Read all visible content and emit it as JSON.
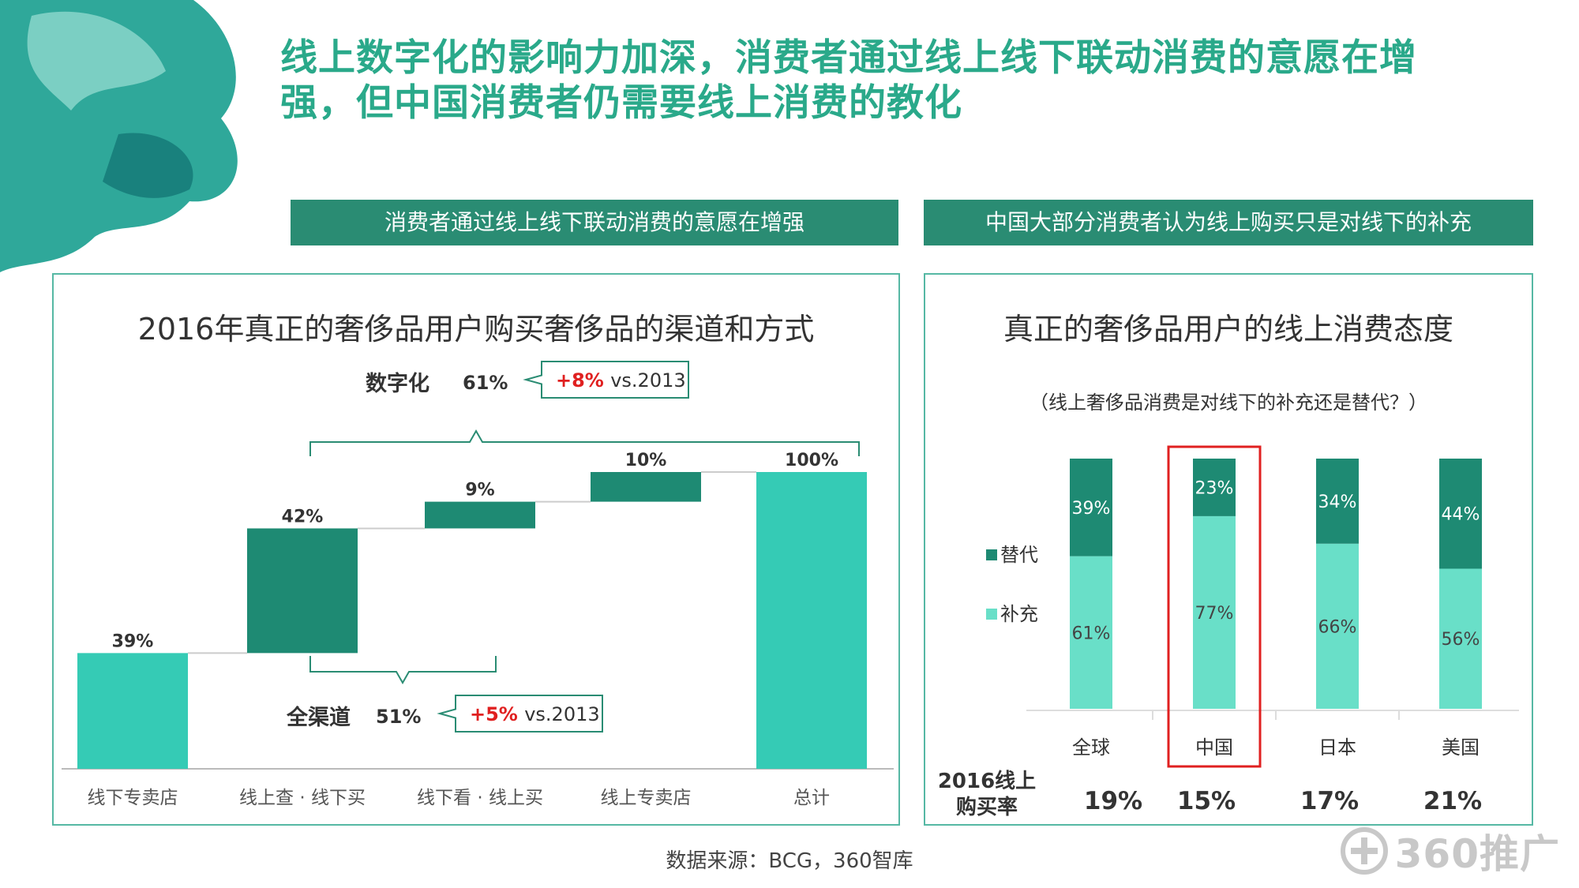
{
  "title": "线上数字化的影响力加深，消费者通过线上线下联动消费的意愿在增强，但中国消费者仍需要线上消费的教化",
  "banners": {
    "left": "消费者通过线上线下联动消费的意愿在增强",
    "right": "中国大部分消费者认为线上购买只是对线下的补充"
  },
  "colors": {
    "accent": "#2aa98a",
    "banner": "#2a8c73",
    "light_teal": "#35cbb5",
    "dark_teal": "#1e8a73",
    "complement": "#69dfc8",
    "highlight": "#e02020",
    "increase": "#e02020"
  },
  "chart_data": [
    {
      "type": "bar",
      "subtype": "waterfall",
      "title": "2016年真正的奢侈品用户购买奢侈品的渠道和方式",
      "categories": [
        "线下专卖店",
        "线上查 · 线下买",
        "线下看 · 线上买",
        "线上专卖店",
        "总计"
      ],
      "values": [
        39,
        42,
        9,
        10,
        100
      ],
      "value_labels": [
        "39%",
        "42%",
        "9%",
        "10%",
        "100%"
      ],
      "ylim": [
        0,
        100
      ],
      "annotations": {
        "digital": {
          "label": "数字化",
          "value": "61%",
          "change": "+8%",
          "vs": "vs.2013"
        },
        "omni": {
          "label": "全渠道",
          "value": "51%",
          "change": "+5%",
          "vs": "vs.2013"
        }
      }
    },
    {
      "type": "bar",
      "subtype": "stacked-100",
      "title": "真正的奢侈品用户的线上消费态度",
      "subtitle": "（线上奢侈品消费是对线下的补充还是替代？）",
      "categories": [
        "全球",
        "中国",
        "日本",
        "美国"
      ],
      "series": [
        {
          "name": "补充",
          "values": [
            61,
            77,
            66,
            56
          ],
          "labels": [
            "61%",
            "77%",
            "66%",
            "56%"
          ]
        },
        {
          "name": "替代",
          "values": [
            39,
            23,
            34,
            44
          ],
          "labels": [
            "39%",
            "23%",
            "34%",
            "44%"
          ]
        }
      ],
      "highlight_category": "中国",
      "legend_position": "left",
      "online_rate": {
        "label_line1": "2016线上",
        "label_line2": "购买率",
        "values": [
          "19%",
          "15%",
          "17%",
          "21%"
        ]
      }
    }
  ],
  "source": "数据来源：BCG，360智库",
  "brand": {
    "text": "360推广",
    "icon": "plus-circle-icon"
  }
}
